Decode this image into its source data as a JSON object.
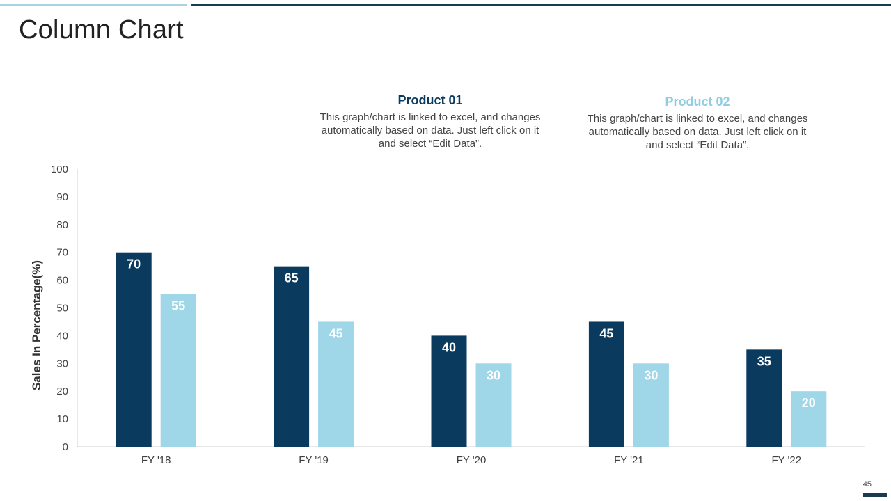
{
  "page": {
    "title": "Column Chart",
    "page_number": "45"
  },
  "legend": [
    {
      "name": "Product 01",
      "color": "#0b3a5f",
      "description": "This graph/chart  is linked to excel, and changes automatically based on data. Just left click on it and select “Edit Data”."
    },
    {
      "name": "Product 02",
      "color": "#9fd6e8",
      "description": "This graph/chart  is linked to excel, and changes automatically based on data. Just left click on it and select “Edit Data”."
    }
  ],
  "chart_data": {
    "type": "bar",
    "title": "",
    "xlabel": "",
    "ylabel": "Sales In Percentage(%)",
    "ylim": [
      0,
      100
    ],
    "ytick_step": 10,
    "grid": false,
    "categories": [
      "FY '18",
      "FY '19",
      "FY '20",
      "FY '21",
      "FY '22"
    ],
    "series": [
      {
        "name": "Product 01",
        "color": "#0b3a5f",
        "values": [
          70,
          65,
          40,
          45,
          35
        ]
      },
      {
        "name": "Product 02",
        "color": "#9fd6e8",
        "values": [
          55,
          45,
          30,
          30,
          20
        ]
      }
    ]
  }
}
